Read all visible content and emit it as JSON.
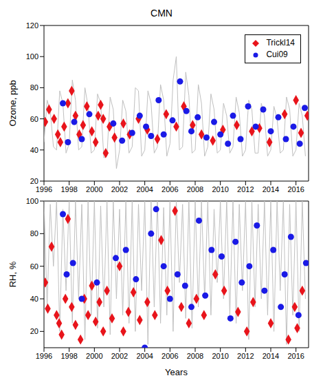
{
  "chart_data": [
    {
      "type": "scatter",
      "title": "CMN",
      "ylabel": "Ozone, ppb",
      "xlim": [
        1996,
        2017
      ],
      "xticks": [
        1996,
        1998,
        2000,
        2002,
        2004,
        2006,
        2008,
        2010,
        2012,
        2014,
        2016
      ],
      "ylim": [
        20,
        120
      ],
      "yticks": [
        20,
        40,
        60,
        80,
        100,
        120
      ],
      "legend": "upper right",
      "series": [
        {
          "type": "line",
          "color": "#c0c0c0",
          "marker": "none",
          "line_style": "solid",
          "x": [
            1996,
            1996.25,
            1996.5,
            1996.75,
            1997,
            1997.25,
            1997.5,
            1997.75,
            1998,
            1998.25,
            1998.5,
            1998.75,
            1999,
            1999.25,
            1999.5,
            1999.75,
            2000,
            2000.25,
            2000.5,
            2000.75,
            2001,
            2001.25,
            2001.5,
            2001.75,
            2002,
            2002.25,
            2002.5,
            2002.75,
            2003,
            2003.25,
            2003.5,
            2003.75,
            2004,
            2004.25,
            2004.5,
            2004.75,
            2005,
            2005.25,
            2005.5,
            2005.75,
            2006,
            2006.25,
            2006.5,
            2006.75,
            2007,
            2007.25,
            2007.5,
            2007.75,
            2008,
            2008.25,
            2008.5,
            2008.75,
            2009,
            2009.25,
            2009.5,
            2009.75,
            2010,
            2010.25,
            2010.5,
            2010.75,
            2011,
            2011.25,
            2011.5,
            2011.75,
            2012,
            2012.25,
            2012.5,
            2012.75,
            2013,
            2013.25,
            2013.5,
            2013.75,
            2014,
            2014.25,
            2014.5,
            2014.75,
            2015,
            2015.25,
            2015.5,
            2015.75,
            2016,
            2016.25,
            2016.5,
            2016.75
          ],
          "values": [
            45,
            72,
            65,
            42,
            40,
            78,
            70,
            38,
            44,
            85,
            72,
            40,
            42,
            80,
            68,
            38,
            40,
            76,
            70,
            35,
            36,
            74,
            66,
            28,
            40,
            72,
            65,
            38,
            42,
            80,
            78,
            36,
            40,
            78,
            70,
            38,
            42,
            82,
            72,
            36,
            44,
            85,
            100,
            40,
            42,
            90,
            75,
            38,
            40,
            82,
            70,
            36,
            42,
            76,
            66,
            38,
            40,
            70,
            62,
            38,
            42,
            74,
            64,
            36,
            40,
            72,
            66,
            38,
            38,
            70,
            62,
            36,
            40,
            68,
            60,
            38,
            40,
            74,
            66,
            36,
            40,
            70,
            62,
            36
          ]
        },
        {
          "name": "Trickl14",
          "color": "#e8141b",
          "marker": "diamond",
          "x": [
            1996.1,
            1996.4,
            1996.8,
            1997.1,
            1997.3,
            1997.6,
            1997.9,
            1998.2,
            1998.5,
            1998.8,
            1999.1,
            1999.4,
            1999.8,
            2000.1,
            2000.3,
            2000.5,
            2000.7,
            2000.9,
            2001.2,
            2001.6,
            2002.3,
            2002.8,
            2003.5,
            2004.2,
            2005.0,
            2005.7,
            2006.5,
            2007.1,
            2007.8,
            2008.5,
            2009.4,
            2010.2,
            2011.3,
            2012.5,
            2013.1,
            2013.9,
            2015.1,
            2016.0,
            2016.4,
            2016.9
          ],
          "values": [
            58,
            66,
            60,
            50,
            45,
            55,
            70,
            78,
            62,
            50,
            56,
            68,
            52,
            45,
            62,
            69,
            60,
            38,
            55,
            48,
            57,
            50,
            60,
            53,
            47,
            63,
            55,
            68,
            56,
            50,
            46,
            53,
            56,
            52,
            54,
            45,
            63,
            72,
            51,
            62
          ]
        },
        {
          "name": "Cui09",
          "color": "#1a1ae6",
          "marker": "circle",
          "x": [
            1997.5,
            1997.9,
            1998.4,
            1999.0,
            1999.6,
            2001.5,
            2002.2,
            2003.0,
            2003.6,
            2004.1,
            2004.5,
            2005.1,
            2005.5,
            2006.2,
            2006.8,
            2007.3,
            2007.7,
            2008.2,
            2008.9,
            2009.5,
            2010.0,
            2010.6,
            2011.0,
            2011.6,
            2012.2,
            2012.8,
            2013.4,
            2014.0,
            2014.6,
            2015.2,
            2015.8,
            2016.3,
            2016.7
          ],
          "values": [
            70,
            45,
            58,
            47,
            63,
            57,
            46,
            51,
            62,
            55,
            49,
            72,
            50,
            59,
            84,
            65,
            52,
            61,
            48,
            58,
            50,
            44,
            62,
            47,
            68,
            55,
            66,
            52,
            61,
            47,
            55,
            44,
            67
          ]
        }
      ]
    },
    {
      "type": "scatter",
      "xlabel": "Years",
      "ylabel": "RH, %",
      "xlim": [
        1996,
        2017
      ],
      "xticks": [
        1996,
        1998,
        2000,
        2002,
        2004,
        2006,
        2008,
        2010,
        2012,
        2014,
        2016
      ],
      "ylim": [
        10,
        100
      ],
      "yticks": [
        20,
        40,
        60,
        80,
        100
      ],
      "series": [
        {
          "type": "line",
          "color": "#c0c0c0",
          "marker": "none",
          "line_style": "solid",
          "x": [
            1996,
            1996.25,
            1996.5,
            1996.75,
            1997,
            1997.25,
            1997.5,
            1997.75,
            1998,
            1998.25,
            1998.5,
            1998.75,
            1999,
            1999.25,
            1999.5,
            1999.75,
            2000,
            2000.25,
            2000.5,
            2000.75,
            2001,
            2001.25,
            2001.5,
            2001.75,
            2002,
            2002.25,
            2002.5,
            2002.75,
            2003,
            2003.25,
            2003.5,
            2003.75,
            2004,
            2004.25,
            2004.5,
            2004.75,
            2005,
            2005.25,
            2005.5,
            2005.75,
            2006,
            2006.25,
            2006.5,
            2006.75,
            2007,
            2007.25,
            2007.5,
            2007.75,
            2008,
            2008.25,
            2008.5,
            2008.75,
            2009,
            2009.25,
            2009.5,
            2009.75,
            2010,
            2010.25,
            2010.5,
            2010.75,
            2011,
            2011.25,
            2011.5,
            2011.75,
            2012,
            2012.25,
            2012.5,
            2012.75,
            2013,
            2013.25,
            2013.5,
            2013.75,
            2014,
            2014.25,
            2014.5,
            2014.75,
            2015,
            2015.25,
            2015.5,
            2015.75,
            2016,
            2016.25,
            2016.5,
            2016.75
          ],
          "values": [
            100,
            35,
            98,
            60,
            100,
            20,
            95,
            45,
            100,
            25,
            100,
            40,
            98,
            15,
            100,
            30,
            100,
            22,
            97,
            35,
            100,
            18,
            100,
            40,
            95,
            30,
            100,
            25,
            100,
            20,
            98,
            45,
            100,
            12,
            100,
            35,
            100,
            25,
            96,
            30,
            100,
            20,
            100,
            50,
            98,
            28,
            100,
            22,
            100,
            35,
            100,
            40,
            100,
            30,
            95,
            50,
            100,
            40,
            100,
            30,
            100,
            25,
            98,
            45,
            100,
            15,
            100,
            35,
            98,
            40,
            100,
            30,
            100,
            20,
            100,
            45,
            100,
            12,
            98,
            30,
            100,
            20,
            100,
            40
          ]
        },
        {
          "name": "Trickl14",
          "color": "#e8141b",
          "marker": "diamond",
          "x": [
            1996.1,
            1996.3,
            1996.6,
            1997.0,
            1997.2,
            1997.4,
            1997.7,
            1997.9,
            1998.2,
            1998.5,
            1998.9,
            1999.2,
            1999.5,
            1999.8,
            2000.1,
            2000.4,
            2000.7,
            2001.0,
            2001.4,
            2002.0,
            2002.3,
            2002.7,
            2003.1,
            2003.6,
            2004.2,
            2004.8,
            2005.3,
            2005.8,
            2006.4,
            2006.9,
            2007.5,
            2008.1,
            2008.7,
            2009.6,
            2010.3,
            2011.4,
            2012.1,
            2012.6,
            2014.0,
            2015.4,
            2015.9,
            2016.1,
            2016.5
          ],
          "values": [
            50,
            34,
            72,
            30,
            25,
            18,
            40,
            89,
            35,
            24,
            15,
            40,
            30,
            48,
            26,
            38,
            20,
            45,
            28,
            60,
            20,
            32,
            44,
            27,
            38,
            30,
            76,
            45,
            94,
            35,
            25,
            40,
            30,
            55,
            45,
            32,
            20,
            38,
            25,
            15,
            35,
            22,
            45
          ]
        },
        {
          "name": "Cui09",
          "color": "#1a1ae6",
          "marker": "circle",
          "x": [
            1997.5,
            1997.8,
            1998.3,
            1999.0,
            2000.2,
            2001.7,
            2002.5,
            2003.3,
            2004.0,
            2004.5,
            2004.9,
            2005.5,
            2006.0,
            2006.6,
            2007.2,
            2007.7,
            2008.3,
            2008.8,
            2009.3,
            2010.1,
            2010.8,
            2011.2,
            2011.7,
            2012.3,
            2012.9,
            2013.5,
            2014.2,
            2014.8,
            2015.1,
            2015.6,
            2016.2,
            2016.8
          ],
          "values": [
            92,
            55,
            62,
            40,
            50,
            65,
            70,
            52,
            10,
            80,
            95,
            60,
            40,
            55,
            48,
            35,
            88,
            42,
            70,
            66,
            28,
            75,
            50,
            60,
            85,
            45,
            70,
            35,
            55,
            78,
            30,
            62
          ]
        }
      ]
    }
  ]
}
